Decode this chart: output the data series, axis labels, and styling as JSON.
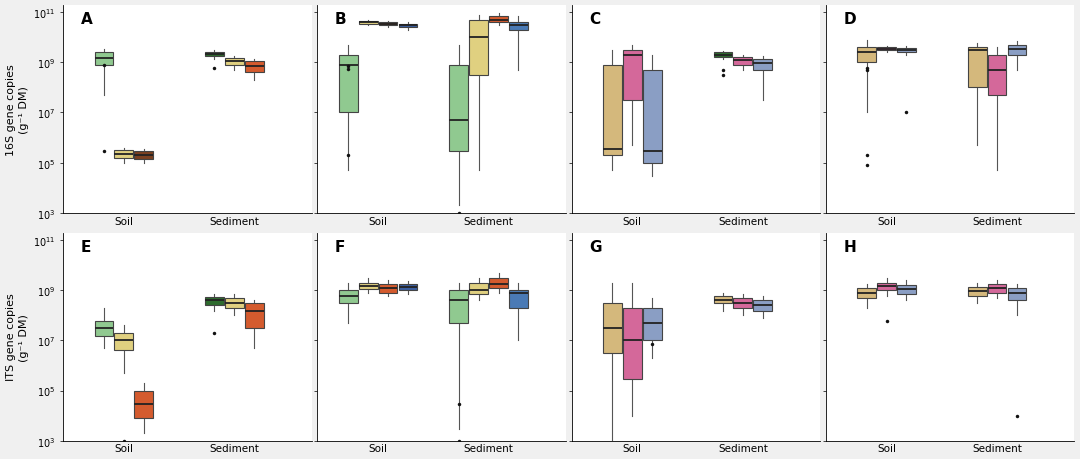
{
  "panels": [
    "A",
    "B",
    "C",
    "D",
    "E",
    "F",
    "G",
    "H"
  ],
  "row_labels": [
    "16S gene copies\n(g⁻¹ DM)",
    "ITS gene copies\n(g⁻¹ DM)"
  ],
  "background": "#f0f0f0",
  "panel_bg": "#ffffff",
  "panels_data": {
    "A": {
      "soil": [
        {
          "color": "#90C990",
          "median": 1500000000.0,
          "q1": 800000000.0,
          "q3": 2500000000.0,
          "wlo": 50000000.0,
          "whi": 3500000000.0,
          "outliers": [
            800000000.0,
            300000.0
          ]
        },
        {
          "color": "#E0D080",
          "median": 230000.0,
          "q1": 150000.0,
          "q3": 320000.0,
          "wlo": 100000.0,
          "whi": 400000.0,
          "outliers": []
        },
        {
          "color": "#7B4020",
          "median": 200000.0,
          "q1": 140000.0,
          "q3": 280000.0,
          "wlo": 100000.0,
          "whi": 350000.0,
          "outliers": []
        }
      ],
      "sediment": [
        {
          "color": "#2E6B2E",
          "median": 2200000000.0,
          "q1": 1800000000.0,
          "q3": 2600000000.0,
          "wlo": 1400000000.0,
          "whi": 3000000000.0,
          "outliers": [
            600000000.0
          ]
        },
        {
          "color": "#E0D080",
          "median": 1100000000.0,
          "q1": 800000000.0,
          "q3": 1500000000.0,
          "wlo": 500000000.0,
          "whi": 1800000000.0,
          "outliers": []
        },
        {
          "color": "#D45B2E",
          "median": 700000000.0,
          "q1": 400000000.0,
          "q3": 1100000000.0,
          "wlo": 200000000.0,
          "whi": 1400000000.0,
          "outliers": []
        }
      ]
    },
    "B": {
      "soil": [
        {
          "color": "#90C990",
          "median": 800000000.0,
          "q1": 10000000.0,
          "q3": 2000000000.0,
          "wlo": 50000.0,
          "whi": 5000000000.0,
          "outliers": [
            550000000.0,
            700000000.0,
            200000.0
          ]
        },
        {
          "color": "#E0D080",
          "median": 40000000000.0,
          "q1": 35000000000.0,
          "q3": 45000000000.0,
          "wlo": 30000000000.0,
          "whi": 50000000000.0,
          "outliers": []
        },
        {
          "color": "#7B4020",
          "median": 35000000000.0,
          "q1": 30000000000.0,
          "q3": 40000000000.0,
          "wlo": 25000000000.0,
          "whi": 45000000000.0,
          "outliers": []
        },
        {
          "color": "#3A5EA0",
          "median": 30000000000.0,
          "q1": 25000000000.0,
          "q3": 35000000000.0,
          "wlo": 20000000000.0,
          "whi": 40000000000.0,
          "outliers": []
        }
      ],
      "sediment": [
        {
          "color": "#90C990",
          "median": 5000000.0,
          "q1": 300000.0,
          "q3": 800000000.0,
          "wlo": 2000.0,
          "whi": 5000000000.0,
          "outliers": [
            1000.0
          ]
        },
        {
          "color": "#E0D080",
          "median": 10000000000.0,
          "q1": 300000000.0,
          "q3": 50000000000.0,
          "wlo": 50000.0,
          "whi": 80000000000.0,
          "outliers": []
        },
        {
          "color": "#D45B2E",
          "median": 50000000000.0,
          "q1": 40000000000.0,
          "q3": 70000000000.0,
          "wlo": 30000000000.0,
          "whi": 90000000000.0,
          "outliers": []
        },
        {
          "color": "#4A7AB5",
          "median": 30000000000.0,
          "q1": 20000000000.0,
          "q3": 40000000000.0,
          "wlo": 500000000.0,
          "whi": 70000000000.0,
          "outliers": []
        }
      ]
    },
    "C": {
      "soil": [
        {
          "color": "#D4B87C",
          "median": 350000.0,
          "q1": 200000.0,
          "q3": 800000000.0,
          "wlo": 50000.0,
          "whi": 3000000000.0,
          "outliers": []
        },
        {
          "color": "#D4689A",
          "median": 2000000000.0,
          "q1": 30000000.0,
          "q3": 3000000000.0,
          "wlo": 500000.0,
          "whi": 5000000000.0,
          "outliers": []
        },
        {
          "color": "#8A9EC4",
          "median": 300000.0,
          "q1": 100000.0,
          "q3": 500000000.0,
          "wlo": 30000.0,
          "whi": 2000000000.0,
          "outliers": []
        }
      ],
      "sediment": [
        {
          "color": "#2E6B2E",
          "median": 2000000000.0,
          "q1": 1700000000.0,
          "q3": 2500000000.0,
          "wlo": 1400000000.0,
          "whi": 2800000000.0,
          "outliers": [
            500000000.0,
            300000000.0
          ]
        },
        {
          "color": "#D4689A",
          "median": 1200000000.0,
          "q1": 800000000.0,
          "q3": 1600000000.0,
          "wlo": 500000000.0,
          "whi": 2000000000.0,
          "outliers": []
        },
        {
          "color": "#8A9EC4",
          "median": 900000000.0,
          "q1": 500000000.0,
          "q3": 1300000000.0,
          "wlo": 30000000.0,
          "whi": 1800000000.0,
          "outliers": []
        }
      ]
    },
    "D": {
      "soil": [
        {
          "color": "#D4B87C",
          "median": 2500000000.0,
          "q1": 1000000000.0,
          "q3": 4000000000.0,
          "wlo": 10000000.0,
          "whi": 8000000000.0,
          "outliers": [
            600000000.0,
            500000000.0,
            200000.0,
            80000.0
          ]
        },
        {
          "color": "#D4689A",
          "median": 3500000000.0,
          "q1": 3000000000.0,
          "q3": 4000000000.0,
          "wlo": 2500000000.0,
          "whi": 4500000000.0,
          "outliers": []
        },
        {
          "color": "#8A9EC4",
          "median": 3000000000.0,
          "q1": 2500000000.0,
          "q3": 3800000000.0,
          "wlo": 2000000000.0,
          "whi": 4500000000.0,
          "outliers": [
            10000000.0
          ]
        }
      ],
      "sediment": [
        {
          "color": "#D4B87C",
          "median": 3000000000.0,
          "q1": 100000000.0,
          "q3": 4000000000.0,
          "wlo": 500000.0,
          "whi": 6000000000.0,
          "outliers": []
        },
        {
          "color": "#D4689A",
          "median": 500000000.0,
          "q1": 50000000.0,
          "q3": 2000000000.0,
          "wlo": 50000.0,
          "whi": 4000000000.0,
          "outliers": []
        },
        {
          "color": "#8A9EC4",
          "median": 3500000000.0,
          "q1": 2000000000.0,
          "q3": 5000000000.0,
          "wlo": 500000000.0,
          "whi": 7000000000.0,
          "outliers": []
        }
      ]
    },
    "E": {
      "soil": [
        {
          "color": "#90C990",
          "median": 30000000.0,
          "q1": 15000000.0,
          "q3": 60000000.0,
          "wlo": 5000000.0,
          "whi": 200000000.0,
          "outliers": []
        },
        {
          "color": "#E0D080",
          "median": 10000000.0,
          "q1": 4000000.0,
          "q3": 20000000.0,
          "wlo": 500000.0,
          "whi": 40000000.0,
          "outliers": [
            1000.0
          ]
        },
        {
          "color": "#D45B2E",
          "median": 30000.0,
          "q1": 8000.0,
          "q3": 100000.0,
          "wlo": 2000.0,
          "whi": 200000.0,
          "outliers": []
        }
      ],
      "sediment": [
        {
          "color": "#2E6B2E",
          "median": 400000000.0,
          "q1": 250000000.0,
          "q3": 550000000.0,
          "wlo": 150000000.0,
          "whi": 700000000.0,
          "outliers": [
            20000000.0
          ]
        },
        {
          "color": "#E0D080",
          "median": 300000000.0,
          "q1": 200000000.0,
          "q3": 500000000.0,
          "wlo": 100000000.0,
          "whi": 700000000.0,
          "outliers": []
        },
        {
          "color": "#D45B2E",
          "median": 150000000.0,
          "q1": 30000000.0,
          "q3": 300000000.0,
          "wlo": 5000000.0,
          "whi": 400000000.0,
          "outliers": []
        }
      ]
    },
    "F": {
      "soil": [
        {
          "color": "#90C990",
          "median": 600000000.0,
          "q1": 300000000.0,
          "q3": 1000000000.0,
          "wlo": 50000000.0,
          "whi": 2000000000.0,
          "outliers": []
        },
        {
          "color": "#E0D080",
          "median": 1500000000.0,
          "q1": 1100000000.0,
          "q3": 2000000000.0,
          "wlo": 800000000.0,
          "whi": 3000000000.0,
          "outliers": []
        },
        {
          "color": "#D45B2E",
          "median": 1200000000.0,
          "q1": 800000000.0,
          "q3": 1800000000.0,
          "wlo": 600000000.0,
          "whi": 2500000000.0,
          "outliers": []
        },
        {
          "color": "#3A5EA0",
          "median": 1300000000.0,
          "q1": 1000000000.0,
          "q3": 1700000000.0,
          "wlo": 700000000.0,
          "whi": 2300000000.0,
          "outliers": []
        }
      ],
      "sediment": [
        {
          "color": "#90C990",
          "median": 400000000.0,
          "q1": 50000000.0,
          "q3": 1000000000.0,
          "wlo": 3000.0,
          "whi": 2000000000.0,
          "outliers": [
            30000.0,
            1000.0
          ]
        },
        {
          "color": "#E0D080",
          "median": 1000000000.0,
          "q1": 700000000.0,
          "q3": 2000000000.0,
          "wlo": 400000000.0,
          "whi": 3000000000.0,
          "outliers": []
        },
        {
          "color": "#D45B2E",
          "median": 1800000000.0,
          "q1": 1200000000.0,
          "q3": 3000000000.0,
          "wlo": 800000000.0,
          "whi": 5000000000.0,
          "outliers": []
        },
        {
          "color": "#4A7AB5",
          "median": 800000000.0,
          "q1": 200000000.0,
          "q3": 1000000000.0,
          "wlo": 10000000.0,
          "whi": 2000000000.0,
          "outliers": []
        }
      ]
    },
    "G": {
      "soil": [
        {
          "color": "#D4B87C",
          "median": 30000000.0,
          "q1": 3000000.0,
          "q3": 300000000.0,
          "wlo": 1000.0,
          "whi": 2000000000.0,
          "outliers": []
        },
        {
          "color": "#D4689A",
          "median": 10000000.0,
          "q1": 300000.0,
          "q3": 200000000.0,
          "wlo": 10000.0,
          "whi": 2000000000.0,
          "outliers": []
        },
        {
          "color": "#8A9EC4",
          "median": 50000000.0,
          "q1": 10000000.0,
          "q3": 200000000.0,
          "wlo": 2000000.0,
          "whi": 500000000.0,
          "outliers": [
            7000000.0
          ]
        }
      ],
      "sediment": [
        {
          "color": "#D4B87C",
          "median": 400000000.0,
          "q1": 300000000.0,
          "q3": 600000000.0,
          "wlo": 150000000.0,
          "whi": 800000000.0,
          "outliers": []
        },
        {
          "color": "#D4689A",
          "median": 300000000.0,
          "q1": 200000000.0,
          "q3": 500000000.0,
          "wlo": 100000000.0,
          "whi": 700000000.0,
          "outliers": []
        },
        {
          "color": "#8A9EC4",
          "median": 250000000.0,
          "q1": 150000000.0,
          "q3": 400000000.0,
          "wlo": 80000000.0,
          "whi": 600000000.0,
          "outliers": []
        }
      ]
    },
    "H": {
      "soil": [
        {
          "color": "#D4B87C",
          "median": 800000000.0,
          "q1": 500000000.0,
          "q3": 1200000000.0,
          "wlo": 200000000.0,
          "whi": 1800000000.0,
          "outliers": []
        },
        {
          "color": "#D4689A",
          "median": 1500000000.0,
          "q1": 1000000000.0,
          "q3": 2000000000.0,
          "wlo": 600000000.0,
          "whi": 3000000000.0,
          "outliers": [
            60000000.0
          ]
        },
        {
          "color": "#8A9EC4",
          "median": 1100000000.0,
          "q1": 700000000.0,
          "q3": 1600000000.0,
          "wlo": 400000000.0,
          "whi": 2500000000.0,
          "outliers": []
        }
      ],
      "sediment": [
        {
          "color": "#D4B87C",
          "median": 900000000.0,
          "q1": 600000000.0,
          "q3": 1300000000.0,
          "wlo": 300000000.0,
          "whi": 2000000000.0,
          "outliers": []
        },
        {
          "color": "#D4689A",
          "median": 1200000000.0,
          "q1": 800000000.0,
          "q3": 1800000000.0,
          "wlo": 500000000.0,
          "whi": 2500000000.0,
          "outliers": []
        },
        {
          "color": "#8A9EC4",
          "median": 800000000.0,
          "q1": 400000000.0,
          "q3": 1200000000.0,
          "wlo": 100000000.0,
          "whi": 1800000000.0,
          "outliers": [
            10000.0
          ]
        }
      ]
    }
  }
}
